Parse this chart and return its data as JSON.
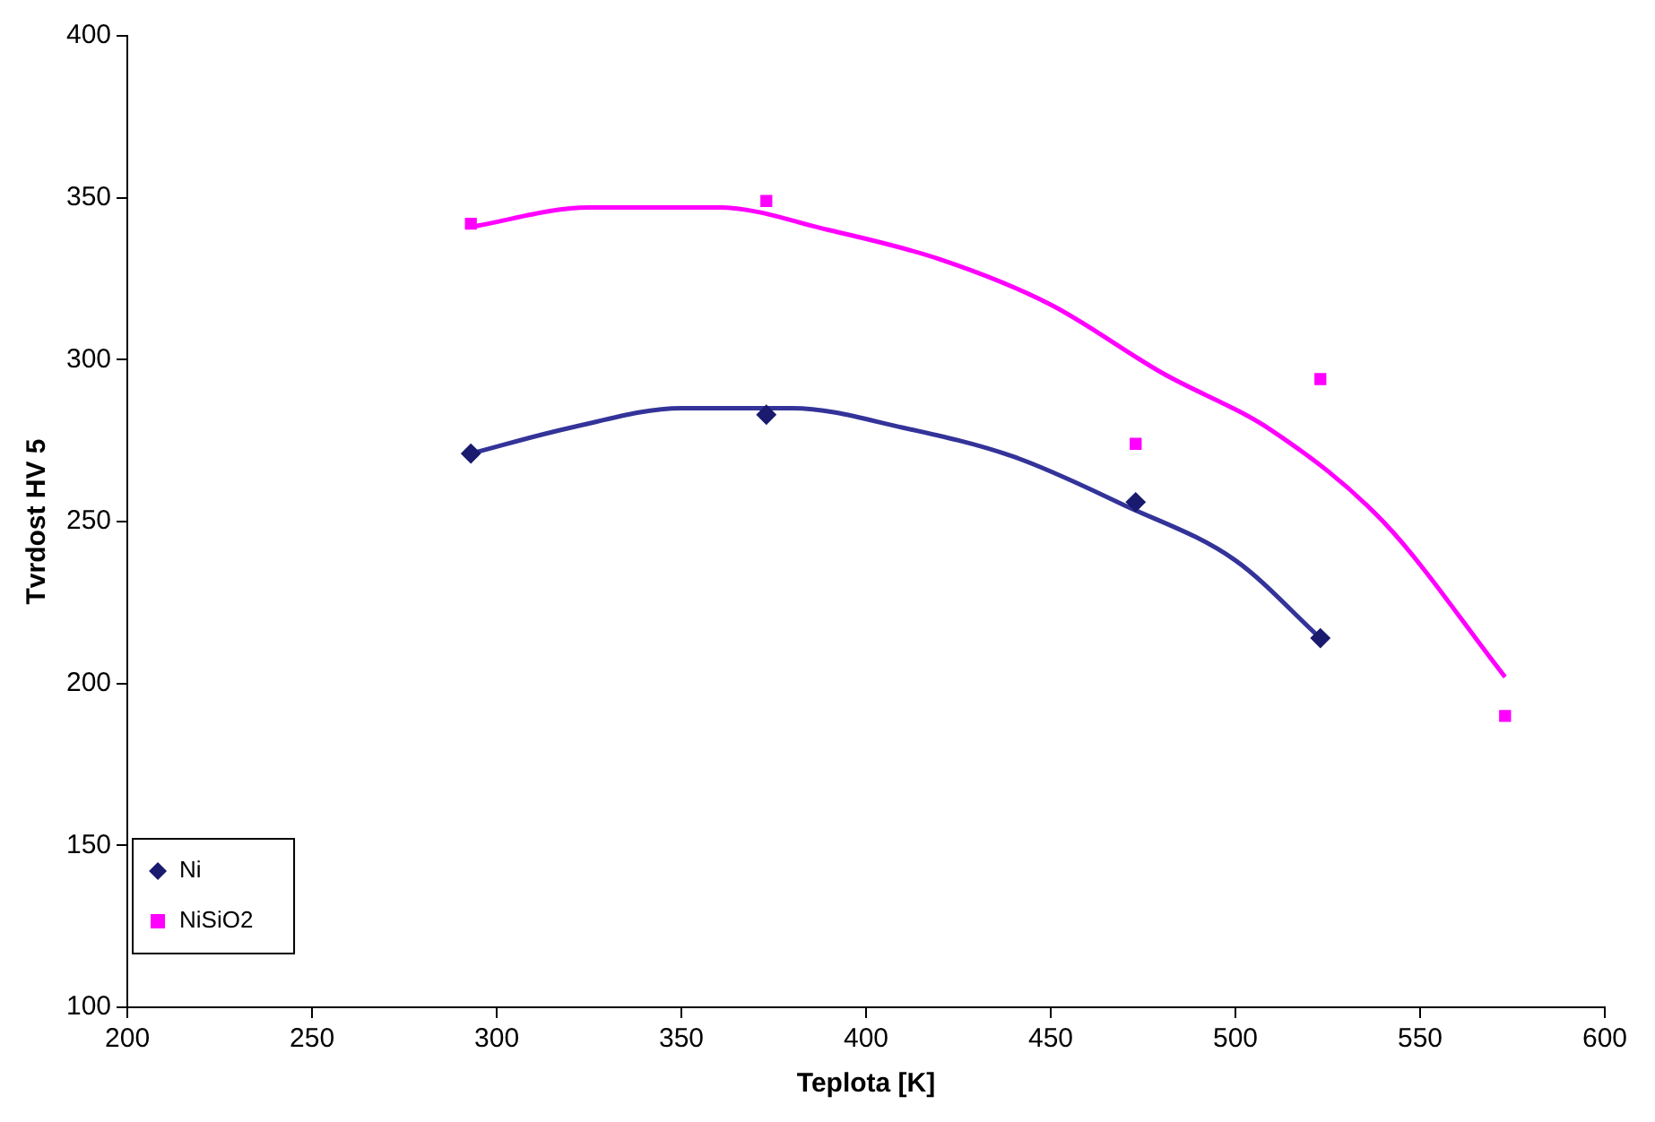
{
  "chart_data": {
    "type": "scatter",
    "xlabel": "Teplota [K]",
    "ylabel": "Tvrdost HV 5",
    "xlim": [
      200,
      600
    ],
    "xticks": [
      200,
      250,
      300,
      350,
      400,
      450,
      500,
      550,
      600
    ],
    "ylim": [
      100,
      400
    ],
    "yticks": [
      100,
      150,
      200,
      250,
      300,
      350,
      400
    ],
    "grid": false,
    "legend": "bottom left",
    "series": [
      {
        "name": "Ni",
        "type": "scatter",
        "marker": "diamond",
        "color": "#1a1a6e",
        "x": [
          293,
          373,
          473,
          523
        ],
        "values": [
          271,
          283,
          256,
          214
        ]
      },
      {
        "name": "NiSiO2",
        "type": "scatter",
        "marker": "square",
        "color": "#ff00ff",
        "x": [
          293,
          373,
          473,
          523,
          573
        ],
        "values": [
          342,
          349,
          274,
          294,
          190
        ]
      },
      {
        "type": "line",
        "marker": "none",
        "color": "#333399",
        "x": [
          293,
          320,
          350,
          380,
          410,
          440,
          470,
          500,
          523
        ],
        "values": [
          271,
          279,
          285,
          285,
          279,
          270,
          255,
          238,
          214
        ]
      },
      {
        "type": "line",
        "marker": "none",
        "color": "#ff00ff",
        "x": [
          293,
          325,
          360,
          390,
          420,
          450,
          480,
          510,
          540,
          573
        ],
        "values": [
          341,
          347,
          347,
          340,
          331,
          317,
          296,
          278,
          250,
          202
        ]
      }
    ]
  }
}
